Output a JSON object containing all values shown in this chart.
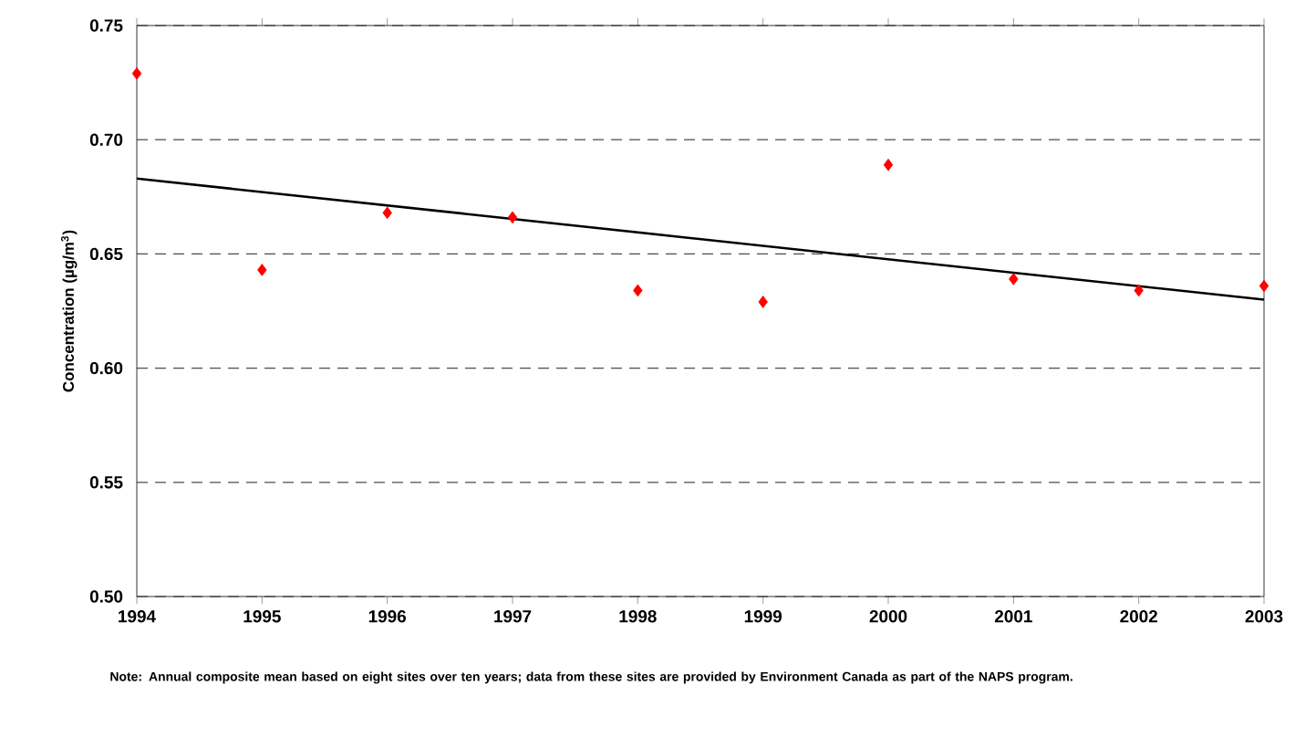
{
  "chart_data": {
    "type": "scatter",
    "ylabel": "Concentration (µg/m$^{3}$)",
    "series": [
      {
        "color": "#ff0000",
        "marker": "diamond",
        "x": [
          1994,
          1995,
          1996,
          1997,
          1998,
          1999,
          2000,
          2001,
          2002,
          2003
        ],
        "values": [
          0.729,
          0.643,
          0.668,
          0.666,
          0.634,
          0.629,
          0.689,
          0.639,
          0.634,
          0.636
        ]
      },
      {
        "type": "line",
        "color": "#000000",
        "line_style": "solid",
        "x": [
          1994,
          2003
        ],
        "values": [
          0.683,
          0.63
        ]
      }
    ],
    "xlim": [
      1994,
      2003
    ],
    "ylim": [
      0.5,
      0.75
    ],
    "xticks": [
      1994,
      1995,
      1996,
      1997,
      1998,
      1999,
      2000,
      2001,
      2002,
      2003
    ],
    "yticks": [
      {
        "value": 0.5,
        "label": "0.50"
      },
      {
        "value": 0.55,
        "label": "0.55"
      },
      {
        "value": 0.6,
        "label": "0.60"
      },
      {
        "value": 0.65,
        "label": "0.65"
      },
      {
        "value": 0.7,
        "label": "0.70"
      },
      {
        "value": 0.75,
        "label": "0.75"
      }
    ],
    "grid": "y",
    "annotations": [
      "Note:  Annual composite mean based on eight sites over ten years; data from these sites are provided by Environment Canada as part of the NAPS program."
    ]
  }
}
